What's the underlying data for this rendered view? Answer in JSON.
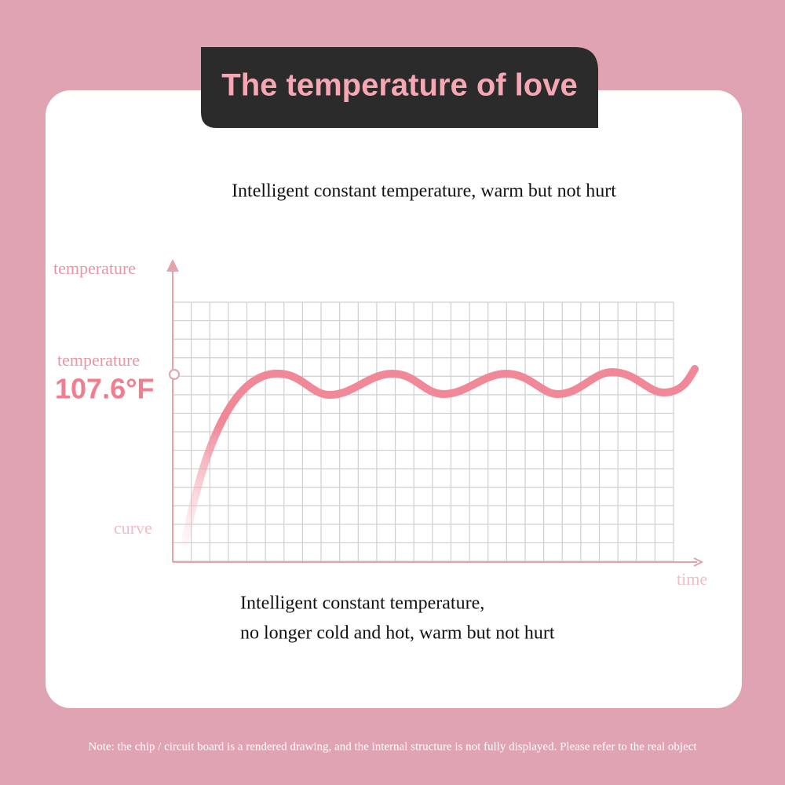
{
  "header": {
    "title": "The temperature of love",
    "subtitle": "Intelligent constant temperature, warm but not hurt"
  },
  "diagram": {
    "y_axis_label": "temperature",
    "marker_label": "temperature",
    "marker_value": "107.6°F",
    "curve_label": "curve",
    "x_axis_label": "time"
  },
  "description": {
    "lines": [
      "Intelligent constant temperature,",
      "no longer cold and hot, warm but not hurt"
    ]
  },
  "footer": {
    "note": "Note: the chip / circuit board is a rendered drawing, and the internal structure is not fully displayed. Please refer to the real object"
  }
}
